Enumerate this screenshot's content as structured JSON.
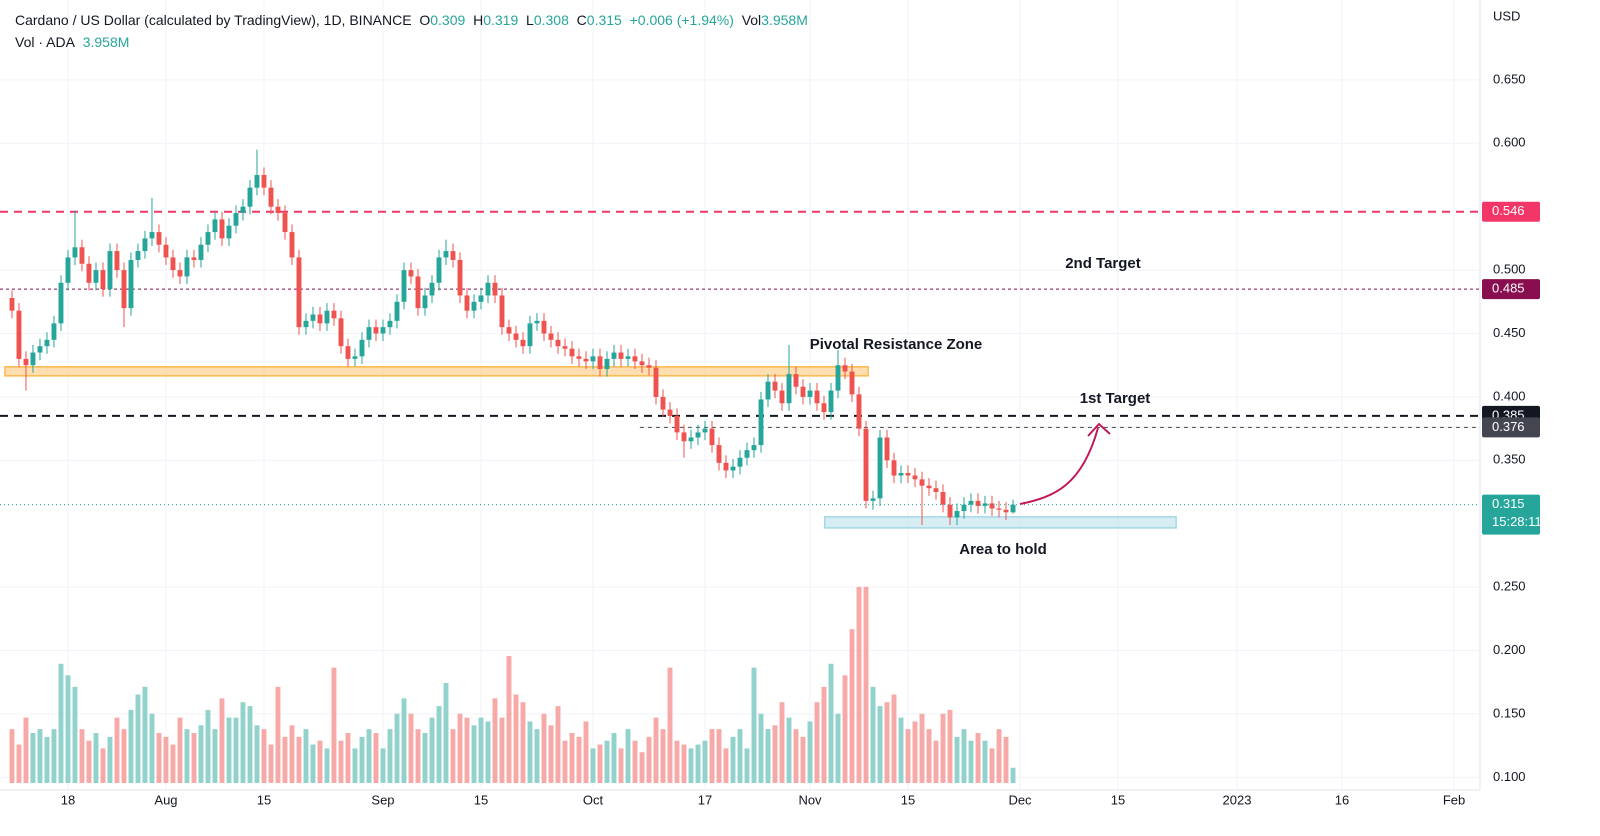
{
  "header": {
    "symbol": "Cardano / US Dollar (calculated by TradingView), 1D, BINANCE",
    "o": "O",
    "h": "H",
    "l": "L",
    "c": "C",
    "change": "+0.006 (+1.94%)",
    "vol": "Vol",
    "volume_text": "3.958M",
    "vol_line": "Vol · ADA"
  },
  "price_axis_unit": "USD",
  "countdown": "15:28:11",
  "chart_data": {
    "type": "candlestick",
    "x": [
      0,
      1,
      2,
      3,
      4,
      5,
      6,
      7,
      8,
      9,
      10,
      11,
      12,
      13,
      14,
      15,
      16,
      17,
      18,
      19,
      20,
      21,
      22,
      23,
      24,
      25,
      26,
      27,
      28,
      29,
      30,
      31,
      32,
      33,
      34,
      35,
      36,
      37,
      38,
      39,
      40,
      41,
      42,
      43,
      44,
      45,
      46,
      47,
      48,
      49,
      50,
      51,
      52,
      53,
      54,
      55,
      56,
      57,
      58,
      59,
      60,
      61,
      62,
      63,
      64,
      65,
      66,
      67,
      68,
      69,
      70,
      71,
      72,
      73,
      74,
      75,
      76,
      77,
      78,
      79,
      80,
      81,
      82,
      83,
      84,
      85,
      86,
      87,
      88,
      89,
      90,
      91,
      92,
      93,
      94,
      95,
      96,
      97,
      98,
      99,
      100,
      101,
      102,
      103,
      104,
      105,
      106,
      107,
      108,
      109,
      110,
      111,
      112,
      113,
      114,
      115,
      116,
      117,
      118,
      119,
      120,
      121,
      122,
      123,
      124,
      125,
      126,
      127,
      128,
      129,
      130,
      131,
      132,
      133,
      134,
      135,
      136,
      137,
      138,
      139,
      140,
      141,
      142,
      143
    ],
    "open": [
      0.478,
      0.468,
      0.43,
      0.425,
      0.435,
      0.44,
      0.445,
      0.458,
      0.49,
      0.51,
      0.518,
      0.505,
      0.49,
      0.5,
      0.485,
      0.515,
      0.5,
      0.47,
      0.508,
      0.515,
      0.525,
      0.53,
      0.52,
      0.51,
      0.5,
      0.495,
      0.51,
      0.508,
      0.52,
      0.53,
      0.54,
      0.525,
      0.535,
      0.545,
      0.55,
      0.565,
      0.575,
      0.565,
      0.55,
      0.545,
      0.53,
      0.51,
      0.455,
      0.46,
      0.465,
      0.458,
      0.468,
      0.462,
      0.44,
      0.43,
      0.432,
      0.445,
      0.455,
      0.45,
      0.455,
      0.46,
      0.475,
      0.5,
      0.495,
      0.47,
      0.48,
      0.49,
      0.51,
      0.515,
      0.508,
      0.48,
      0.468,
      0.475,
      0.48,
      0.49,
      0.48,
      0.455,
      0.45,
      0.445,
      0.44,
      0.458,
      0.46,
      0.45,
      0.445,
      0.44,
      0.438,
      0.432,
      0.43,
      0.428,
      0.432,
      0.422,
      0.43,
      0.435,
      0.43,
      0.432,
      0.428,
      0.425,
      0.423,
      0.4,
      0.39,
      0.385,
      0.372,
      0.365,
      0.368,
      0.372,
      0.375,
      0.362,
      0.348,
      0.342,
      0.345,
      0.352,
      0.358,
      0.362,
      0.398,
      0.412,
      0.405,
      0.395,
      0.418,
      0.408,
      0.4,
      0.405,
      0.395,
      0.388,
      0.405,
      0.425,
      0.42,
      0.402,
      0.375,
      0.318,
      0.32,
      0.368,
      0.35,
      0.338,
      0.34,
      0.338,
      0.335,
      0.33,
      0.328,
      0.325,
      0.315,
      0.305,
      0.31,
      0.315,
      0.318,
      0.314,
      0.316,
      0.312,
      0.311,
      0.309
    ],
    "high": [
      0.484,
      0.474,
      0.436,
      0.441,
      0.446,
      0.451,
      0.464,
      0.496,
      0.516,
      0.547,
      0.524,
      0.511,
      0.506,
      0.506,
      0.521,
      0.521,
      0.506,
      0.514,
      0.521,
      0.531,
      0.557,
      0.536,
      0.526,
      0.516,
      0.506,
      0.516,
      0.516,
      0.526,
      0.536,
      0.546,
      0.546,
      0.541,
      0.551,
      0.556,
      0.571,
      0.595,
      0.581,
      0.571,
      0.556,
      0.551,
      0.536,
      0.516,
      0.466,
      0.471,
      0.471,
      0.474,
      0.474,
      0.468,
      0.446,
      0.438,
      0.451,
      0.461,
      0.461,
      0.461,
      0.466,
      0.481,
      0.506,
      0.506,
      0.501,
      0.486,
      0.496,
      0.516,
      0.524,
      0.521,
      0.514,
      0.486,
      0.481,
      0.486,
      0.496,
      0.496,
      0.486,
      0.461,
      0.456,
      0.451,
      0.464,
      0.466,
      0.466,
      0.456,
      0.451,
      0.446,
      0.444,
      0.438,
      0.436,
      0.438,
      0.438,
      0.436,
      0.441,
      0.441,
      0.438,
      0.438,
      0.434,
      0.431,
      0.429,
      0.406,
      0.396,
      0.391,
      0.378,
      0.374,
      0.378,
      0.381,
      0.381,
      0.368,
      0.354,
      0.351,
      0.358,
      0.364,
      0.368,
      0.404,
      0.418,
      0.418,
      0.411,
      0.441,
      0.424,
      0.414,
      0.411,
      0.411,
      0.401,
      0.411,
      0.437,
      0.431,
      0.426,
      0.408,
      0.381,
      0.326,
      0.374,
      0.374,
      0.356,
      0.346,
      0.346,
      0.344,
      0.341,
      0.336,
      0.334,
      0.331,
      0.321,
      0.316,
      0.321,
      0.324,
      0.324,
      0.322,
      0.322,
      0.318,
      0.317,
      0.319
    ],
    "low": [
      0.462,
      0.424,
      0.405,
      0.419,
      0.429,
      0.434,
      0.439,
      0.452,
      0.484,
      0.504,
      0.499,
      0.484,
      0.484,
      0.479,
      0.479,
      0.494,
      0.455,
      0.464,
      0.502,
      0.509,
      0.519,
      0.514,
      0.504,
      0.494,
      0.489,
      0.489,
      0.502,
      0.502,
      0.514,
      0.524,
      0.519,
      0.519,
      0.529,
      0.539,
      0.544,
      0.559,
      0.559,
      0.544,
      0.539,
      0.524,
      0.504,
      0.449,
      0.449,
      0.454,
      0.452,
      0.452,
      0.456,
      0.434,
      0.424,
      0.424,
      0.426,
      0.439,
      0.444,
      0.444,
      0.449,
      0.454,
      0.469,
      0.489,
      0.464,
      0.464,
      0.474,
      0.484,
      0.504,
      0.502,
      0.474,
      0.462,
      0.462,
      0.469,
      0.474,
      0.474,
      0.449,
      0.444,
      0.439,
      0.434,
      0.434,
      0.452,
      0.444,
      0.439,
      0.434,
      0.432,
      0.426,
      0.424,
      0.422,
      0.422,
      0.416,
      0.416,
      0.424,
      0.424,
      0.424,
      0.422,
      0.419,
      0.417,
      0.394,
      0.384,
      0.379,
      0.366,
      0.352,
      0.359,
      0.362,
      0.366,
      0.356,
      0.342,
      0.336,
      0.336,
      0.339,
      0.346,
      0.352,
      0.356,
      0.392,
      0.399,
      0.389,
      0.389,
      0.402,
      0.394,
      0.394,
      0.389,
      0.382,
      0.382,
      0.399,
      0.414,
      0.396,
      0.369,
      0.312,
      0.311,
      0.314,
      0.344,
      0.332,
      0.332,
      0.332,
      0.329,
      0.299,
      0.322,
      0.319,
      0.309,
      0.299,
      0.299,
      0.304,
      0.309,
      0.308,
      0.308,
      0.306,
      0.305,
      0.303,
      0.308
    ],
    "close": [
      0.468,
      0.43,
      0.425,
      0.435,
      0.44,
      0.445,
      0.458,
      0.49,
      0.51,
      0.518,
      0.505,
      0.49,
      0.5,
      0.485,
      0.515,
      0.5,
      0.47,
      0.508,
      0.515,
      0.525,
      0.53,
      0.52,
      0.51,
      0.5,
      0.495,
      0.51,
      0.508,
      0.52,
      0.53,
      0.54,
      0.525,
      0.535,
      0.545,
      0.55,
      0.565,
      0.575,
      0.565,
      0.55,
      0.545,
      0.53,
      0.51,
      0.455,
      0.46,
      0.465,
      0.458,
      0.468,
      0.462,
      0.44,
      0.43,
      0.432,
      0.445,
      0.455,
      0.45,
      0.455,
      0.46,
      0.475,
      0.5,
      0.495,
      0.47,
      0.48,
      0.49,
      0.51,
      0.515,
      0.508,
      0.48,
      0.468,
      0.475,
      0.48,
      0.49,
      0.48,
      0.455,
      0.45,
      0.445,
      0.44,
      0.458,
      0.46,
      0.45,
      0.445,
      0.44,
      0.438,
      0.432,
      0.43,
      0.428,
      0.432,
      0.422,
      0.43,
      0.435,
      0.43,
      0.432,
      0.428,
      0.425,
      0.423,
      0.4,
      0.39,
      0.385,
      0.372,
      0.365,
      0.368,
      0.372,
      0.375,
      0.362,
      0.348,
      0.342,
      0.345,
      0.352,
      0.358,
      0.362,
      0.398,
      0.412,
      0.405,
      0.395,
      0.418,
      0.408,
      0.4,
      0.405,
      0.395,
      0.388,
      0.405,
      0.425,
      0.42,
      0.402,
      0.375,
      0.318,
      0.32,
      0.368,
      0.35,
      0.338,
      0.34,
      0.338,
      0.335,
      0.33,
      0.328,
      0.325,
      0.315,
      0.305,
      0.31,
      0.315,
      0.318,
      0.314,
      0.316,
      0.312,
      0.311,
      0.309,
      0.315
    ],
    "volume": [
      14,
      10,
      17,
      13,
      14,
      12,
      14,
      31,
      28,
      25,
      14,
      11,
      13,
      9,
      12,
      17,
      14,
      19,
      23,
      25,
      18,
      13,
      12,
      10,
      17,
      14,
      13,
      15,
      19,
      14,
      22,
      17,
      17,
      21,
      20,
      15,
      14,
      10,
      25,
      12,
      15,
      12,
      14,
      10,
      11,
      9,
      30,
      11,
      13,
      9,
      12,
      14,
      13,
      9,
      14,
      18,
      22,
      18,
      14,
      13,
      17,
      20,
      26,
      14,
      18,
      17,
      15,
      17,
      16,
      22,
      17,
      33,
      23,
      21,
      16,
      14,
      18,
      15,
      20,
      11,
      13,
      12,
      16,
      9,
      10,
      11,
      13,
      9,
      14,
      11,
      8,
      12,
      17,
      14,
      30,
      11,
      10,
      9,
      10,
      11,
      14,
      14,
      9,
      12,
      14,
      9,
      30,
      18,
      14,
      15,
      21,
      17,
      14,
      12,
      16,
      21,
      25,
      31,
      18,
      28,
      40,
      51,
      51,
      25,
      20,
      21,
      23,
      17,
      14,
      16,
      18,
      14,
      11,
      18,
      19,
      12,
      14,
      11,
      13,
      11,
      9,
      14,
      12,
      3.958
    ],
    "up_color": "#26a69a",
    "down_color": "#ef5350",
    "volume_up_color": "#92d2cc",
    "volume_down_color": "#f7a9a7",
    "xlim": [
      -1.71,
      209.71
    ],
    "ylim": [
      0.09,
      0.713
    ],
    "volume_lim": [
      0,
      52
    ],
    "yticks": [
      {
        "value": 0.1,
        "label": "0.100"
      },
      {
        "value": 0.15,
        "label": "0.150"
      },
      {
        "value": 0.2,
        "label": "0.200"
      },
      {
        "value": 0.25,
        "label": "0.250"
      },
      {
        "value": 0.35,
        "label": "0.350"
      },
      {
        "value": 0.4,
        "label": "0.400"
      },
      {
        "value": 0.45,
        "label": "0.450"
      },
      {
        "value": 0.5,
        "label": "0.500"
      },
      {
        "value": 0.6,
        "label": "0.600"
      },
      {
        "value": 0.65,
        "label": "0.650"
      }
    ],
    "xticks": [
      {
        "value": 8,
        "label": "18"
      },
      {
        "value": 22,
        "label": "Aug"
      },
      {
        "value": 36,
        "label": "15"
      },
      {
        "value": 53,
        "label": "Sep"
      },
      {
        "value": 67,
        "label": "15"
      },
      {
        "value": 83,
        "label": "Oct"
      },
      {
        "value": 99,
        "label": "17"
      },
      {
        "value": 114,
        "label": "Nov"
      },
      {
        "value": 128,
        "label": "15"
      },
      {
        "value": 144,
        "label": "Dec"
      },
      {
        "value": 158,
        "label": "15"
      },
      {
        "value": 175,
        "label": "2023"
      },
      {
        "value": 190,
        "label": "16"
      },
      {
        "value": 206,
        "label": "Feb"
      }
    ],
    "grid": true,
    "levels": [
      {
        "value": 0.546,
        "color": "#f23668",
        "dash": "8,6",
        "width": 2
      },
      {
        "value": 0.485,
        "color": "#880e4f",
        "dash": "3,3",
        "width": 1
      },
      {
        "value": 0.385,
        "color": "#131722",
        "dash": "8,6",
        "width": 2
      },
      {
        "value": 0.376,
        "color": "#434651",
        "dash": "4,4",
        "width": 1,
        "from": 89.7
      }
    ],
    "zones": [
      {
        "x": [
          -1,
          122.3
        ],
        "y": [
          0.4166,
          0.4237
        ],
        "color": "#ffb74d"
      },
      {
        "x": [
          116.1,
          166.3
        ],
        "y": [
          0.2967,
          0.3054
        ],
        "color": "#a5d8e6"
      }
    ],
    "annotations": [
      "2nd Target",
      "Pivotal Resistance Zone",
      "1st Target",
      "Area to hold"
    ]
  }
}
